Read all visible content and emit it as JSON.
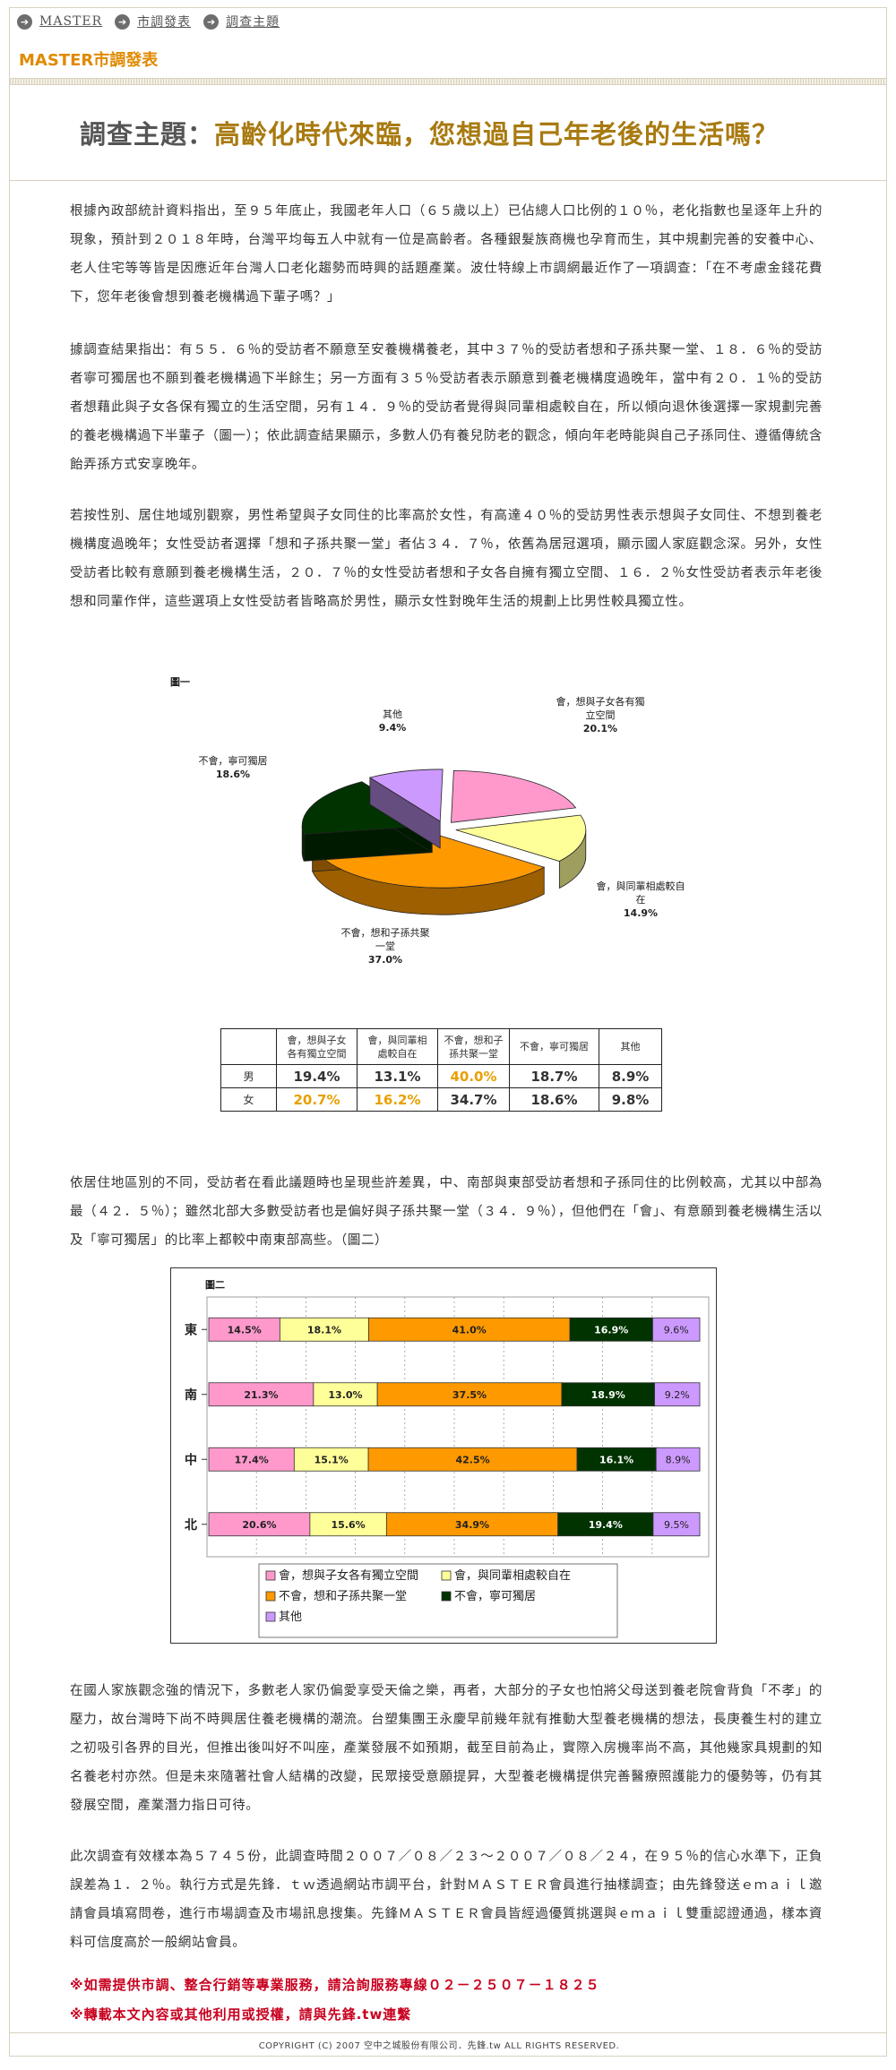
{
  "breadcrumb": [
    {
      "label": "MASTER"
    },
    {
      "label": "市調發表"
    },
    {
      "label": "調查主題"
    }
  ],
  "section_title": "MASTER市調發表",
  "headline": {
    "label": "調查主題：",
    "text": "高齡化時代來臨，您想過自己年老後的生活嗎？"
  },
  "paragraphs": [
    "根據內政部統計資料指出，至９５年底止，我國老年人口（６５歲以上）已佔總人口比例的１０％，老化指數也呈逐年上升的現象，預計到２０１８年時，台灣平均每五人中就有一位是高齡者。各種銀髮族商機也孕育而生，其中規劃完善的安養中心、老人住宅等等皆是因應近年台灣人口老化趨勢而時興的話題產業。波仕特線上市調網最近作了一項調查：「在不考慮金錢花費下，您年老後會想到養老機構過下輩子嗎？」",
    "據調查結果指出：有５５．６％的受訪者不願意至安養機構養老，其中３７％的受訪者想和子孫共聚一堂、１８．６％的受訪者寧可獨居也不願到養老機構過下半餘生；另一方面有３５％受訪者表示願意到養老機構度過晚年，當中有２０．１％的受訪者想藉此與子女各保有獨立的生活空間，另有１４．９％的受訪者覺得與同輩相處較自在，所以傾向退休後選擇一家規劃完善的養老機構過下半輩子（圖一）；依此調查結果顯示，多數人仍有養兒防老的觀念，傾向年老時能與自己子孫同住、遵循傳統含飴弄孫方式安享晚年。",
    "若按性別、居住地域別觀察，男性希望與子女同住的比率高於女性，有高達４０％的受訪男性表示想與子女同住、不想到養老機構度過晚年；女性受訪者選擇「想和子孫共聚一堂」者佔３４．７％，依舊為居冠選項，顯示國人家庭觀念深。另外，女性受訪者比較有意願到養老機構生活，２０．７％的女性受訪者想和子女各自擁有獨立空間、１６．２％女性受訪者表示年老後想和同輩作伴，這些選項上女性受訪者皆略高於男性，顯示女性對晚年生活的規劃上比男性較具獨立性。",
    "依居住地區別的不同，受訪者在看此議題時也呈現些許差異，中、南部與東部受訪者想和子孫同住的比例較高，尤其以中部為最（４２．５％）；雖然北部大多數受訪者也是偏好與子孫共聚一堂（３４．９％），但他們在「會」、有意願到養老機構生活以及「寧可獨居」的比率上都較中南東部高些。（圖二）",
    "在國人家族觀念強的情況下，多數老人家仍偏愛享受天倫之樂，再者，大部分的子女也怕將父母送到養老院會背負「不孝」的壓力，故台灣時下尚不時興居住養老機構的潮流。台塑集團王永慶早前幾年就有推動大型養老機構的想法，長庚養生村的建立之初吸引各界的目光，但推出後叫好不叫座，產業發展不如預期，截至目前為止，實際入房機率尚不高，其他幾家具規劃的知名養老村亦然。但是未來隨著社會人結構的改變，民眾接受意願提昇，大型養老機構提供完善醫療照護能力的優勢等，仍有其發展空間，產業潛力指日可待。",
    "此次調查有效樣本為５７４５份，此調查時間２００７／０８／２３～２００７／０８／２４，在９５％的信心水準下，正負誤差為１．２％。執行方式是先鋒．ｔｗ透過網站市調平台，針對ＭＡＳＴＥＲ會員進行抽樣調查；由先鋒發送ｅｍａｉｌ邀請會員填寫問卷，進行市場調查及市場訊息搜集。先鋒ＭＡＳＴＥＲ會員皆經過優質挑選與ｅｍａｉｌ雙重認證通過，樣本資料可信度高於一般網站會員。"
  ],
  "footnotes": [
    "※如需提供市調、整合行銷等專業服務，請洽詢服務專線０２－２５０７－１８２５",
    "※轉載本文內容或其他利用或授權，請與先鋒.tw連繫"
  ],
  "copyright": "COPYRIGHT (C) 2007 空中之城股份有限公司．先鋒.tw ALL RIGHTS RESERVED.",
  "chart_data": [
    {
      "type": "pie",
      "title": "圖一",
      "slices": [
        {
          "label": "會，想與子女各有獨立空間",
          "display": [
            "會，想與子女各有獨",
            "立空間"
          ],
          "value": 20.1,
          "color": "#ff99cc"
        },
        {
          "label": "會，與同輩相處較自在",
          "display": [
            "會，與同輩相處較自",
            "在"
          ],
          "value": 14.9,
          "color": "#ffff99"
        },
        {
          "label": "不會，想和子孫共聚一堂",
          "display": [
            "不會，想和子孫共聚",
            "一堂"
          ],
          "value": 37.0,
          "color": "#ff9900"
        },
        {
          "label": "不會，寧可獨居",
          "display": [
            "不會，寧可獨居"
          ],
          "value": 18.6,
          "color": "#003300"
        },
        {
          "label": "其他",
          "display": [
            "其他"
          ],
          "value": 9.4,
          "color": "#cc99ff"
        }
      ],
      "value_labels": [
        "20.1%",
        "14.9%",
        "37.0%",
        "18.6%",
        "9.4%"
      ]
    },
    {
      "type": "table",
      "columns": [
        "會，想與子女各有獨立空間",
        "會，與同輩相處較自在",
        "不會，想和子孫共聚一堂",
        "不會，寧可獨居",
        "其他"
      ],
      "column_display": [
        [
          "會，想與子女",
          "各有獨立空間"
        ],
        [
          "會，與同輩相",
          "處較自在"
        ],
        [
          "不會，想和子",
          "孫共聚一堂"
        ],
        [
          "不會，寧可獨居"
        ],
        [
          "其他"
        ]
      ],
      "rows": [
        {
          "label": "男",
          "values": [
            "19.4%",
            "13.1%",
            "40.0%",
            "18.7%",
            "8.9%"
          ],
          "highlight": [
            2
          ]
        },
        {
          "label": "女",
          "values": [
            "20.7%",
            "16.2%",
            "34.7%",
            "18.6%",
            "9.8%"
          ],
          "highlight": [
            0,
            1
          ]
        }
      ],
      "highlight_color": "#e8a000"
    },
    {
      "type": "bar",
      "stacked": true,
      "orientation": "horizontal",
      "title": "圖二",
      "categories": [
        "東",
        "南",
        "中",
        "北"
      ],
      "series": [
        {
          "name": "會，想與子女各有獨立空間",
          "values": [
            14.5,
            21.3,
            17.4,
            20.6
          ],
          "color": "#ff99cc",
          "labels": [
            "14.5%",
            "21.3%",
            "17.4%",
            "20.6%"
          ]
        },
        {
          "name": "會，與同輩相處較自在",
          "values": [
            18.1,
            13.0,
            15.1,
            15.6
          ],
          "color": "#ffff99",
          "labels": [
            "18.1%",
            "13.0%",
            "15.1%",
            "15.6%"
          ]
        },
        {
          "name": "不會，想和子孫共聚一堂",
          "values": [
            41.0,
            37.5,
            42.5,
            34.9
          ],
          "color": "#ff9900",
          "labels": [
            "41.0%",
            "37.5%",
            "42.5%",
            "34.9%"
          ]
        },
        {
          "name": "不會，寧可獨居",
          "values": [
            16.9,
            18.9,
            16.1,
            19.4
          ],
          "color": "#003300",
          "labels": [
            "16.9%",
            "18.9%",
            "16.1%",
            "19.4%"
          ]
        },
        {
          "name": "其他",
          "values": [
            9.6,
            9.2,
            8.9,
            9.5
          ],
          "color": "#cc99ff",
          "labels": [
            "9.6%",
            "9.2%",
            "8.9%",
            "9.5%"
          ]
        }
      ],
      "legend": "bottom",
      "grid": true
    }
  ]
}
